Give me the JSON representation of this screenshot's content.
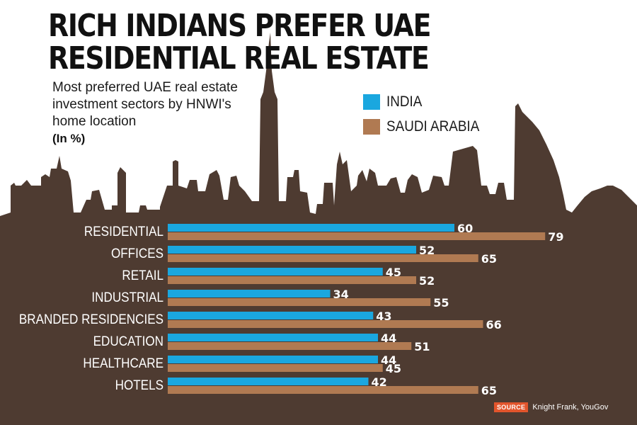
{
  "header": {
    "title_line1": "RICH INDIANS PREFER UAE",
    "title_line2": "RESIDENTIAL REAL ESTATE",
    "subtitle": "Most preferred UAE real estate investment sectors by HNWI's home location",
    "unit": "(In %)"
  },
  "legend": {
    "india": "INDIA",
    "saudi": "SAUDI ARABIA"
  },
  "colors": {
    "india": "#1aa7df",
    "saudi": "#b07a52",
    "background_silhouette": "#4e3b31",
    "source_tag": "#e2552c"
  },
  "source": {
    "tag": "SOURCE",
    "text": "Knight Frank, YouGov"
  },
  "chart_data": {
    "type": "bar",
    "orientation": "horizontal",
    "categories": [
      "RESIDENTIAL",
      "OFFICES",
      "RETAIL",
      "INDUSTRIAL",
      "BRANDED RESIDENCIES",
      "EDUCATION",
      "HEALTHCARE",
      "HOTELS"
    ],
    "series": [
      {
        "name": "INDIA",
        "values": [
          60,
          52,
          45,
          34,
          43,
          44,
          44,
          42
        ]
      },
      {
        "name": "SAUDI ARABIA",
        "values": [
          79,
          65,
          52,
          55,
          66,
          51,
          45,
          65
        ]
      }
    ],
    "title": "RICH INDIANS PREFER UAE RESIDENTIAL REAL ESTATE",
    "xlim": [
      0,
      100
    ],
    "data_labels": true,
    "grid": false,
    "legend_position": "top-right"
  }
}
